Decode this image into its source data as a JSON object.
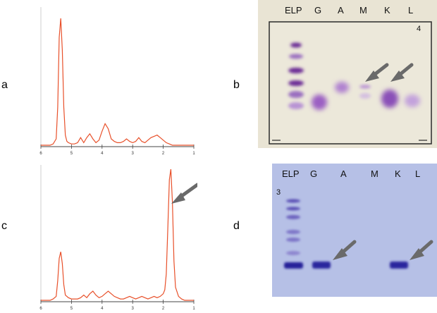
{
  "panels": {
    "a": "a",
    "b": "b",
    "c": "c",
    "d": "d"
  },
  "chromatogram_a": {
    "type": "line",
    "xlim": [
      6,
      1
    ],
    "x_ticks": [
      "6",
      "5",
      "4",
      "3",
      "2",
      "1"
    ],
    "series": [
      {
        "x": [
          6.0,
          5.9,
          5.8,
          5.7,
          5.6,
          5.5,
          5.45,
          5.4,
          5.35,
          5.3,
          5.25,
          5.2,
          5.15,
          5.1,
          5.0,
          4.9,
          4.8,
          4.7,
          4.6,
          4.5,
          4.4,
          4.3,
          4.2,
          4.1,
          4.0,
          3.9,
          3.8,
          3.7,
          3.6,
          3.5,
          3.4,
          3.3,
          3.2,
          3.1,
          3.0,
          2.9,
          2.8,
          2.7,
          2.6,
          2.5,
          2.4,
          2.3,
          2.2,
          2.1,
          2.0,
          1.9,
          1.8,
          1.7,
          1.6,
          1.5,
          1.4,
          1.3,
          1.2,
          1.1,
          1.0
        ],
        "y": [
          0,
          0,
          0,
          0,
          0.01,
          0.05,
          0.3,
          0.85,
          1.0,
          0.75,
          0.3,
          0.08,
          0.03,
          0.02,
          0.01,
          0.01,
          0.02,
          0.06,
          0.02,
          0.06,
          0.09,
          0.05,
          0.02,
          0.04,
          0.11,
          0.17,
          0.13,
          0.05,
          0.03,
          0.02,
          0.02,
          0.03,
          0.05,
          0.03,
          0.02,
          0.03,
          0.06,
          0.03,
          0.02,
          0.04,
          0.06,
          0.07,
          0.08,
          0.06,
          0.04,
          0.02,
          0.01,
          0,
          0,
          0,
          0,
          0,
          0,
          0,
          0
        ]
      }
    ]
  },
  "chromatogram_c": {
    "type": "line",
    "xlim": [
      6,
      1
    ],
    "x_ticks": [
      "6",
      "5",
      "4",
      "3",
      "2",
      "1"
    ],
    "series": [
      {
        "x": [
          6.0,
          5.9,
          5.8,
          5.7,
          5.6,
          5.5,
          5.45,
          5.4,
          5.35,
          5.3,
          5.25,
          5.2,
          5.1,
          5.0,
          4.9,
          4.8,
          4.7,
          4.6,
          4.5,
          4.4,
          4.3,
          4.2,
          4.1,
          4.0,
          3.9,
          3.8,
          3.7,
          3.6,
          3.5,
          3.4,
          3.3,
          3.2,
          3.1,
          3.0,
          2.9,
          2.8,
          2.7,
          2.6,
          2.5,
          2.4,
          2.3,
          2.2,
          2.1,
          2.0,
          1.95,
          1.9,
          1.85,
          1.8,
          1.75,
          1.7,
          1.65,
          1.6,
          1.5,
          1.4,
          1.3,
          1.2,
          1.1,
          1.0
        ],
        "y": [
          0,
          0,
          0,
          0,
          0.01,
          0.03,
          0.15,
          0.32,
          0.37,
          0.28,
          0.12,
          0.04,
          0.02,
          0.01,
          0.01,
          0.01,
          0.02,
          0.04,
          0.02,
          0.05,
          0.07,
          0.04,
          0.02,
          0.03,
          0.05,
          0.07,
          0.05,
          0.03,
          0.02,
          0.01,
          0.01,
          0.02,
          0.03,
          0.02,
          0.01,
          0.02,
          0.03,
          0.02,
          0.01,
          0.02,
          0.03,
          0.02,
          0.03,
          0.05,
          0.08,
          0.2,
          0.55,
          0.92,
          1.0,
          0.75,
          0.3,
          0.1,
          0.03,
          0.01,
          0,
          0,
          0,
          0
        ]
      }
    ]
  },
  "gel_b": {
    "number": "4",
    "lanes": [
      "ELP",
      "G",
      "A",
      "M",
      "K",
      "L"
    ]
  },
  "gel_d": {
    "number": "3",
    "lanes": [
      "ELP",
      "G",
      "A",
      "M",
      "K",
      "L"
    ]
  },
  "colors": {
    "trace": "#e8502a",
    "gel_b_bg": "#ebe6d6",
    "gel_b_band": "#8a4fb0",
    "gel_d_bg": "#b7c1e6",
    "gel_d_band": "#28249a",
    "arrow": "#6a6a6a"
  }
}
